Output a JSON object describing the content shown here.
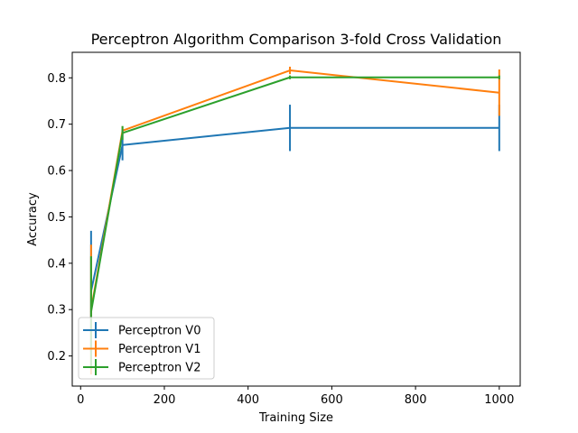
{
  "chart_data": {
    "type": "line",
    "title": "Perceptron Algorithm Comparison 3-fold Cross Validation",
    "xlabel": "Training Size",
    "ylabel": "Accuracy",
    "xlim": [
      -20,
      1050
    ],
    "ylim": [
      0.135,
      0.855
    ],
    "xticks": [
      0,
      200,
      400,
      600,
      800,
      1000
    ],
    "yticks": [
      0.2,
      0.3,
      0.4,
      0.5,
      0.6,
      0.7,
      0.8
    ],
    "ytick_labels": [
      "0.2",
      "0.3",
      "0.4",
      "0.5",
      "0.6",
      "0.7",
      "0.8"
    ],
    "grid": false,
    "error_bars": "vertical",
    "legend": "lower-left",
    "x": [
      25,
      100,
      500,
      1000
    ],
    "series": [
      {
        "name": "Perceptron V0",
        "color": "#1f77b4",
        "values": [
          0.34,
          0.655,
          0.692,
          0.692
        ],
        "errors": [
          0.13,
          0.033,
          0.05,
          0.05
        ]
      },
      {
        "name": "Perceptron V1",
        "color": "#ff7f0e",
        "values": [
          0.3,
          0.686,
          0.816,
          0.768
        ],
        "errors": [
          0.14,
          0.009,
          0.008,
          0.05
        ]
      },
      {
        "name": "Perceptron V2",
        "color": "#2ca02c",
        "values": [
          0.295,
          0.681,
          0.801,
          0.801
        ],
        "errors": [
          0.12,
          0.015,
          0.004,
          0.004
        ]
      }
    ]
  }
}
